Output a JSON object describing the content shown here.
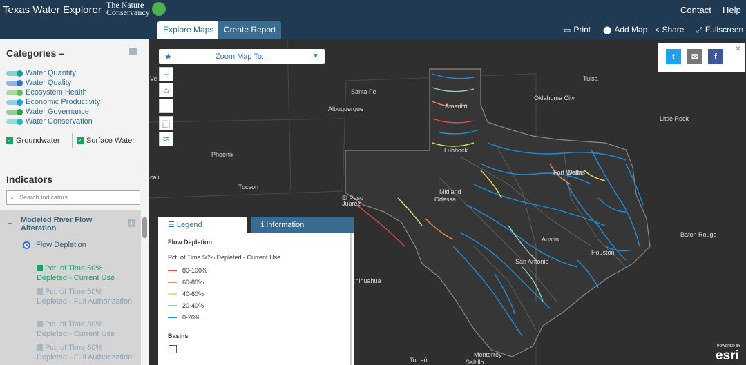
{
  "header": {
    "app_title": "Texas Water Explorer",
    "logo_text_1": "The Nature",
    "logo_text_2": "Conservancy",
    "contact": "Contact",
    "help": "Help",
    "tabs": [
      "Explore Maps",
      "Create Report"
    ],
    "tools": [
      "Print",
      "Add Map",
      "Share",
      "Fullscreen"
    ]
  },
  "sidebar": {
    "categories_title": "Categories",
    "categories": [
      {
        "label": "Water Quantity",
        "color": "#18a0a0"
      },
      {
        "label": "Water Quality",
        "color": "#2b74c4"
      },
      {
        "label": "Ecosystem Health",
        "color": "#66bb55"
      },
      {
        "label": "Economic Productivity",
        "color": "#1e9ed8"
      },
      {
        "label": "Water Governance",
        "color": "#2e9f4a"
      },
      {
        "label": "Water Conservation",
        "color": "#1fb9b9"
      }
    ],
    "groundwater": "Groundwater",
    "surface_water": "Surface Water",
    "indicators_title": "Indicators",
    "search_placeholder": "Search Indicators",
    "indicator_group": "Modeled River Flow Alteration",
    "radio_label": "Flow Depletion",
    "options": [
      {
        "label": "Pct. of Time 50% Depleted - Current Use",
        "checked": true
      },
      {
        "label": "Pct. of Time 50% Depleted - Full Authorization",
        "checked": false
      },
      {
        "label": "Pct. of Time 80% Depleted - Current Use",
        "checked": false
      },
      {
        "label": "Pct. of Time 80% Depleted - Full Authorization",
        "checked": false
      }
    ]
  },
  "map": {
    "zoom_label": "Zoom Map To...",
    "cities": [
      "Tulsa",
      "Santa Fe",
      "Oklahoma City",
      "Albuquerque",
      "Amarillo",
      "Little Rock",
      "Lubbock",
      "Phoenix",
      "Fort Worth",
      "Dallas",
      "Tucson",
      "Midland",
      "Odessa",
      "El Paso",
      "Juarez",
      "Austin",
      "Houston",
      "San Antonio",
      "Baton Rouge",
      "Chihuahua",
      "Monterrey",
      "Torreón",
      "Saltillo",
      "Ve",
      "cali"
    ],
    "attribution_small": "POWERED BY",
    "attribution": "esri"
  },
  "legend": {
    "tab_legend": "Legend",
    "tab_info": "Information",
    "title": "Flow Depletion",
    "subtitle": "Pct. of Time 50% Depleted - Current Use",
    "items": [
      {
        "label": "80-100%",
        "color": "#e8474a"
      },
      {
        "label": "60-80%",
        "color": "#f5894a"
      },
      {
        "label": "40-60%",
        "color": "#e9e26a"
      },
      {
        "label": "20-40%",
        "color": "#8fd6b6"
      },
      {
        "label": "0-20%",
        "color": "#1e8ee0"
      }
    ],
    "basins": "Basins"
  }
}
